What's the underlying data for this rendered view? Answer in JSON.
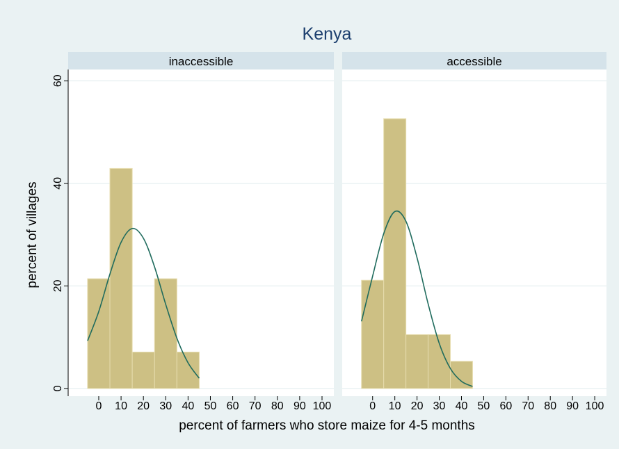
{
  "chart_data": {
    "type": "histogram",
    "title": "Kenya",
    "x_label": "percent of farmers who store maize for 4-5 months",
    "y_label": "percent of villages",
    "bins": [
      -5,
      5,
      15,
      25,
      35,
      45
    ],
    "color": "#cdc084",
    "curve_color": "#1f6b5d",
    "xlim": [
      -13.7,
      105.3
    ],
    "xticks": [
      0,
      10,
      20,
      30,
      40,
      50,
      60,
      70,
      80,
      90,
      100
    ],
    "ylim": [
      -1.5,
      62.2
    ],
    "yticks": [
      0,
      20,
      40,
      60
    ],
    "grid": true,
    "panels": [
      {
        "name": "inaccessible",
        "values": [
          21.4,
          42.9,
          7.1,
          21.4,
          7.1
        ],
        "density_x": [
          -5,
          0,
          5,
          10,
          15,
          20,
          25,
          30,
          35,
          40,
          45
        ],
        "density": [
          9.3,
          15.0,
          22.3,
          28.5,
          31.2,
          29.3,
          23.7,
          16.4,
          9.8,
          5.0,
          2.0
        ]
      },
      {
        "name": "accessible",
        "values": [
          21.1,
          52.6,
          10.5,
          10.5,
          5.3
        ],
        "density_x": [
          -5,
          0,
          5,
          10,
          15,
          20,
          25,
          30,
          35,
          40,
          45
        ],
        "density": [
          13.1,
          21.9,
          30.2,
          34.5,
          32.6,
          25.5,
          16.5,
          8.8,
          3.9,
          1.4,
          0.4
        ]
      }
    ]
  }
}
